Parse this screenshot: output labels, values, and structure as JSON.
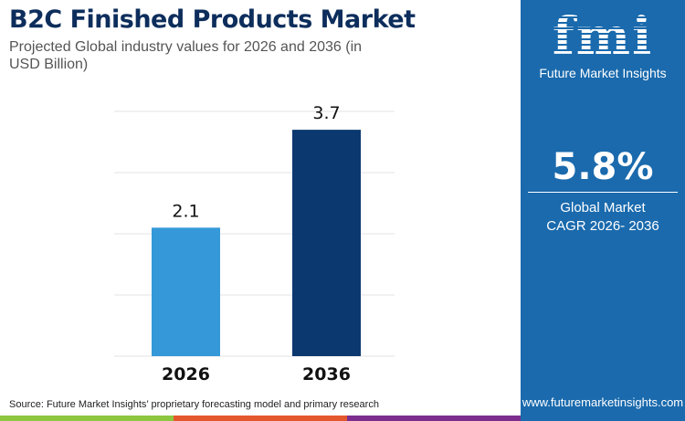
{
  "title": "B2C Finished Products Market",
  "subtitle": "Projected Global industry values for 2026 and 2036 (in USD Billion)",
  "logo": {
    "text": "fmi",
    "name": "Future Market Insights"
  },
  "cagr": {
    "value": "5.8%",
    "label_line1": "Global Market",
    "label_line2": "CAGR 2026- 2036"
  },
  "source": "Source: Future Market Insights’ proprietary forecasting model and primary research",
  "url": "www.futuremarketinsights.com",
  "colors": {
    "bar_2026": "#3598d8",
    "bar_2036": "#0c3870",
    "panel": "#1a6aad",
    "stripes": [
      "#8dc63f",
      "#e4572e",
      "#7b2e8e"
    ]
  },
  "chart_data": {
    "type": "bar",
    "categories": [
      "2026",
      "2036"
    ],
    "values": [
      2.1,
      3.7
    ],
    "data_labels": [
      "2.1",
      "3.7"
    ],
    "ylim": [
      0,
      4
    ],
    "grid": true,
    "yaxis_labels_shown": false
  }
}
